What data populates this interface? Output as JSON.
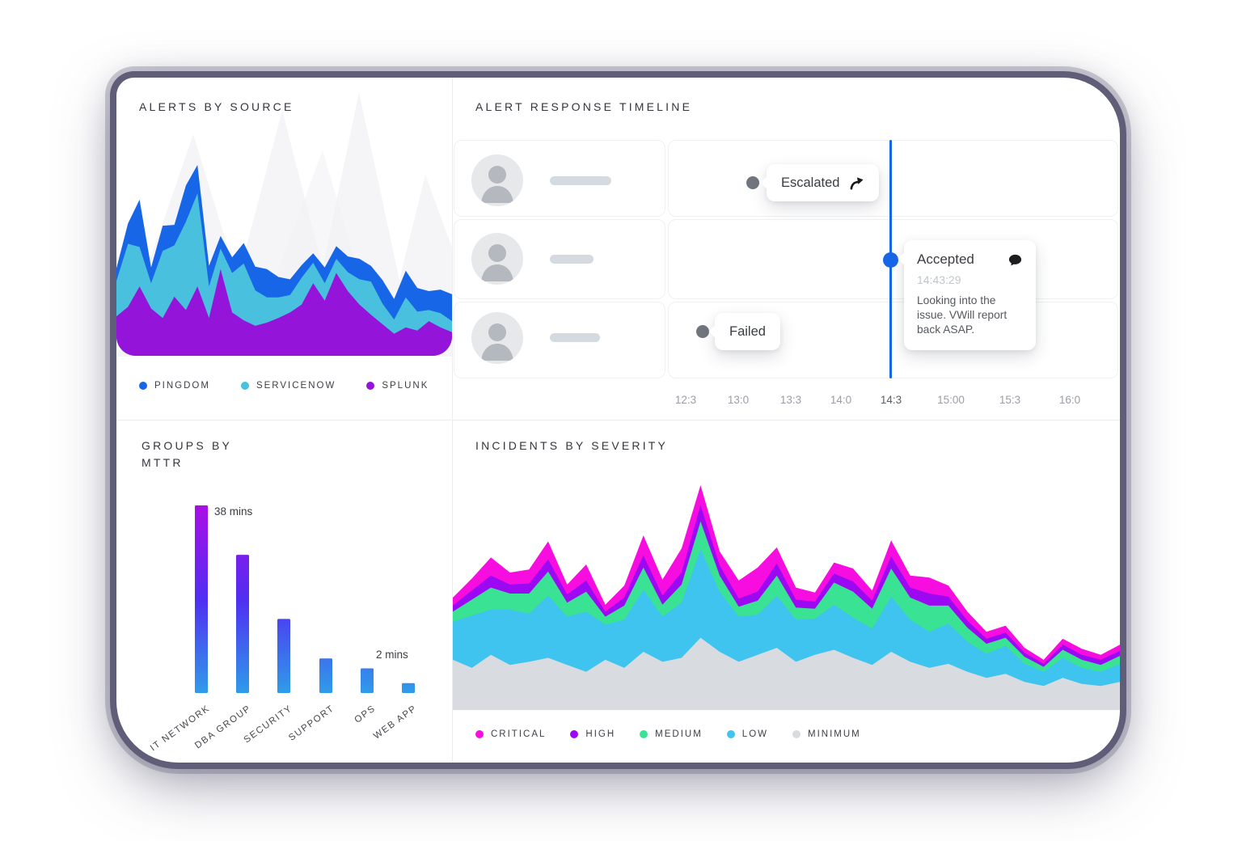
{
  "app": {
    "accent_blue": "#1866e8",
    "event_dot_gray": "#71757d",
    "icons": {
      "escalated": "escalate-arrow-icon",
      "accepted": "comment-bubble-icon"
    }
  },
  "panels": {
    "alerts": {
      "title": "ALERTS BY SOURCE"
    },
    "timeline": {
      "title": "ALERT RESPONSE TIMELINE",
      "events": [
        {
          "status": "Escalated"
        },
        {
          "status": "Accepted",
          "time": "14:43:29",
          "note": "Looking into the issue. VWill report back ASAP."
        },
        {
          "status": "Failed"
        }
      ],
      "axis": {
        "ticks": [
          "12:3",
          "13:0",
          "13:3",
          "14:0",
          "14:3",
          "15:00",
          "15:3",
          "16:0"
        ],
        "active_tick": "14:3"
      }
    },
    "mttr": {
      "title_line1": "GROUPS BY",
      "title_line2": "MTTR"
    },
    "incidents": {
      "title": "INCIDENTS BY SEVERITY"
    }
  },
  "chart_data": [
    {
      "id": "alerts-by-source",
      "type": "area",
      "stacked": true,
      "title": "Alerts by source",
      "axes": "hidden",
      "legend_position": "bottom",
      "series": [
        {
          "name": "SPLUNK",
          "color": "#9414d9",
          "values": [
            50,
            62,
            88,
            60,
            48,
            75,
            58,
            88,
            48,
            110,
            55,
            45,
            38,
            42,
            48,
            55,
            65,
            92,
            70,
            105,
            82,
            65,
            52,
            40,
            28,
            36,
            32,
            44,
            36,
            30
          ]
        },
        {
          "name": "SERVICENOW",
          "color": "#49c0dd",
          "values": [
            45,
            80,
            50,
            32,
            85,
            65,
            112,
            118,
            40,
            26,
            50,
            72,
            45,
            32,
            26,
            22,
            34,
            26,
            22,
            18,
            24,
            32,
            42,
            26,
            18,
            38,
            24,
            14,
            18,
            14
          ]
        },
        {
          "name": "PINGDOM",
          "color": "#1766e8",
          "values": [
            16,
            26,
            60,
            20,
            32,
            26,
            46,
            36,
            26,
            16,
            20,
            26,
            30,
            36,
            26,
            20,
            16,
            12,
            20,
            16,
            20,
            26,
            20,
            30,
            26,
            34,
            30,
            24,
            30,
            34
          ]
        }
      ]
    },
    {
      "id": "groups-by-mttr",
      "type": "bar",
      "title": "Groups by MTTR",
      "unit": "mins",
      "categories": [
        "IT NETWORK",
        "DBA GROUP",
        "SECURITY",
        "SUPPORT",
        "OPS",
        "WEB APP"
      ],
      "values": [
        38,
        28,
        15,
        7,
        5,
        2
      ],
      "ylim": [
        0,
        40
      ],
      "axes": "hidden",
      "bar_gradient": [
        "#b20be6",
        "#4f2ef2",
        "#2f9ce9"
      ],
      "annotations": [
        {
          "index": 0,
          "label": "38 mins"
        },
        {
          "index": 5,
          "label": "2 mins"
        }
      ]
    },
    {
      "id": "incidents-by-severity",
      "type": "area",
      "stacked": true,
      "title": "Incidents by severity",
      "axes": "hidden",
      "legend_position": "bottom",
      "series": [
        {
          "name": "MINIMUM",
          "color": "#d8dbdf",
          "values": [
            50,
            42,
            55,
            45,
            48,
            52,
            45,
            38,
            50,
            42,
            58,
            48,
            52,
            72,
            58,
            48,
            55,
            62,
            48,
            55,
            60,
            52,
            45,
            58,
            48,
            42,
            46,
            38,
            32,
            36,
            28,
            24,
            32,
            26,
            24,
            28
          ]
        },
        {
          "name": "LOW",
          "color": "#3ec4ee",
          "values": [
            38,
            52,
            45,
            55,
            48,
            62,
            48,
            60,
            35,
            48,
            62,
            45,
            55,
            88,
            60,
            45,
            40,
            52,
            42,
            36,
            45,
            40,
            36,
            55,
            42,
            36,
            40,
            30,
            24,
            28,
            18,
            14,
            20,
            16,
            14,
            18
          ]
        },
        {
          "name": "MEDIUM",
          "color": "#3ae294",
          "values": [
            10,
            16,
            22,
            16,
            20,
            24,
            14,
            20,
            8,
            14,
            22,
            12,
            18,
            28,
            16,
            10,
            14,
            20,
            12,
            10,
            22,
            26,
            20,
            28,
            22,
            26,
            18,
            14,
            10,
            8,
            7,
            5,
            8,
            8,
            7,
            8
          ]
        },
        {
          "name": "HIGH",
          "color": "#9d08f2",
          "values": [
            6,
            9,
            12,
            9,
            10,
            12,
            8,
            11,
            5,
            8,
            12,
            9,
            12,
            16,
            10,
            8,
            9,
            12,
            8,
            7,
            9,
            10,
            8,
            12,
            10,
            12,
            9,
            7,
            5,
            5,
            4,
            3,
            5,
            5,
            5,
            5
          ]
        },
        {
          "name": "CRITICAL",
          "color": "#f70ddf",
          "values": [
            8,
            12,
            18,
            12,
            14,
            18,
            10,
            16,
            7,
            12,
            20,
            16,
            24,
            20,
            14,
            18,
            24,
            16,
            12,
            9,
            11,
            13,
            10,
            16,
            12,
            16,
            11,
            9,
            7,
            7,
            5,
            4,
            6,
            6,
            5,
            6
          ]
        }
      ]
    }
  ]
}
